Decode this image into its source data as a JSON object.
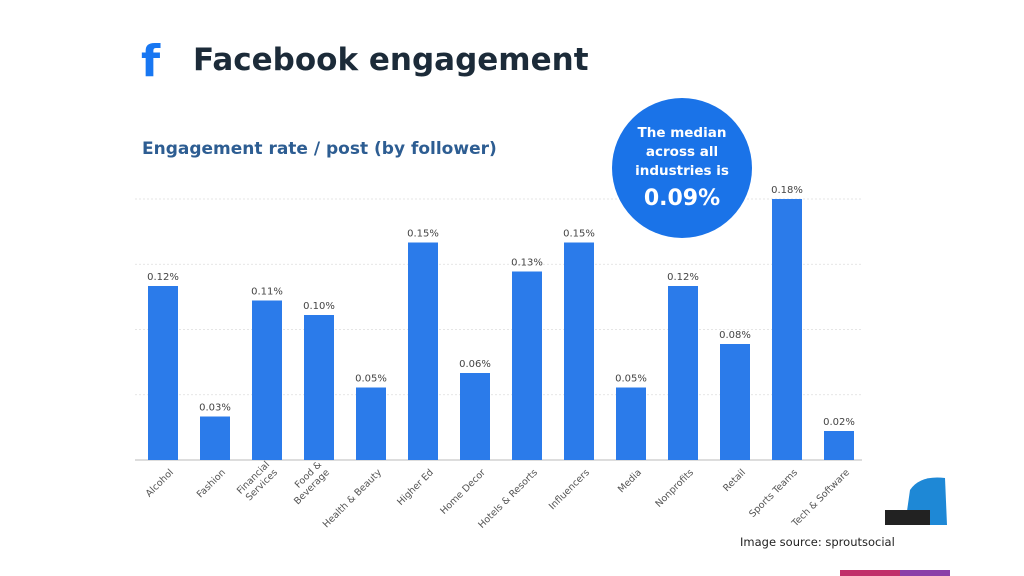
{
  "header": {
    "logo_glyph": "f",
    "title": "Facebook engagement",
    "subtitle": "Engagement rate / post (by follower)"
  },
  "callout": {
    "text": "The median across all industries is",
    "value": "0.09%"
  },
  "footer": {
    "source": "Image source: sproutsocial"
  },
  "colors": {
    "bar": "#2b7bea",
    "bubble": "#1a73e8",
    "grid": "#dddddd",
    "title": "#1c2b39",
    "subtitle": "#2d5d92",
    "facebook": "#1877f2"
  },
  "chart_data": {
    "type": "bar",
    "categories": [
      "Alcohol",
      "Fashion",
      "Financial Services",
      "Food & Beverage",
      "Health & Beauty",
      "Higher Ed",
      "Home Decor",
      "Hotels & Resorts",
      "Influencers",
      "Media",
      "Nonprofits",
      "Retail",
      "Sports Teams",
      "Tech & Software"
    ],
    "values": [
      0.12,
      0.03,
      0.11,
      0.1,
      0.05,
      0.15,
      0.06,
      0.13,
      0.15,
      0.05,
      0.12,
      0.08,
      0.18,
      0.02
    ],
    "data_labels": [
      "0.12%",
      "0.03%",
      "0.11%",
      "0.10%",
      "0.05%",
      "0.15%",
      "0.06%",
      "0.13%",
      "0.15%",
      "0.05%",
      "0.12%",
      "0.08%",
      "0.18%",
      "0.02%"
    ],
    "title": "Engagement rate / post (by follower)",
    "xlabel": "",
    "ylabel": "",
    "ylim": [
      0,
      0.18
    ],
    "grid": true,
    "unit": "%"
  }
}
